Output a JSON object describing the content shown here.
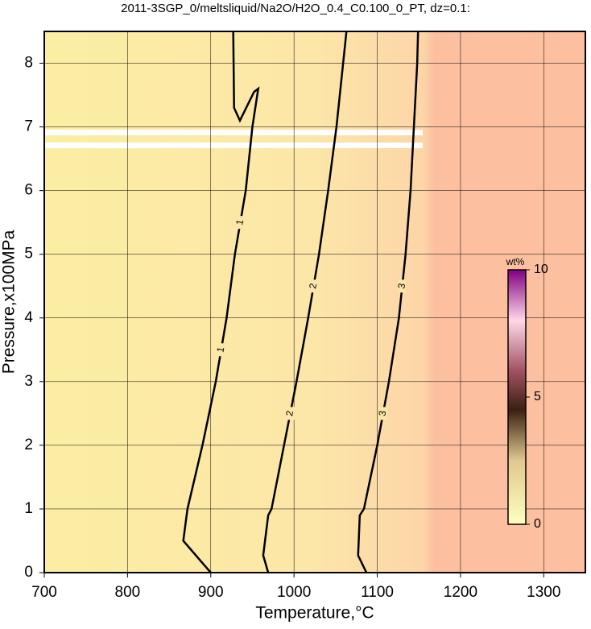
{
  "chart_data": {
    "type": "contour",
    "title": "2011-3SGP_0/meltsliquid/Na2O/H2O_0.4_C0.100_0_PT, dz=0.1:",
    "x_label": "Temperature,°C",
    "y_label": "Pressure,x100MPa",
    "xlim": [
      700,
      1350
    ],
    "ylim": [
      0,
      8.5
    ],
    "xticks": [
      700,
      800,
      900,
      1000,
      1100,
      1200,
      1300
    ],
    "yticks": [
      0,
      1,
      2,
      3,
      4,
      5,
      6,
      7,
      8
    ],
    "grid": true,
    "contours": [
      {
        "level": 1,
        "color": "#000000",
        "x": [
          900,
          867,
          872,
          890,
          906,
          919,
          929,
          942,
          950,
          957,
          952,
          935,
          928,
          927
        ],
        "y": [
          0,
          0.5,
          1,
          2,
          3,
          4,
          5,
          6,
          7,
          7.6,
          7.55,
          7.1,
          7.3,
          8.5
        ]
      },
      {
        "level": 2,
        "color": "#000000",
        "x": [
          969,
          963,
          969,
          973,
          988,
          1003,
          1017,
          1030,
          1041,
          1051,
          1059,
          1063
        ],
        "y": [
          0,
          0.27,
          0.9,
          1,
          2,
          3,
          4,
          5,
          6,
          7,
          8,
          8.5
        ]
      },
      {
        "level": 3,
        "color": "#000000",
        "x": [
          1087,
          1077,
          1079,
          1084,
          1100,
          1114,
          1126,
          1134,
          1140,
          1144,
          1148,
          1149
        ],
        "y": [
          0,
          0.27,
          0.9,
          1,
          2,
          3,
          4,
          5,
          6,
          7,
          8,
          8.5
        ]
      }
    ],
    "colorbar": {
      "label": "wt%",
      "lim": [
        0,
        10
      ],
      "ticks": [
        0,
        5,
        10
      ]
    }
  }
}
